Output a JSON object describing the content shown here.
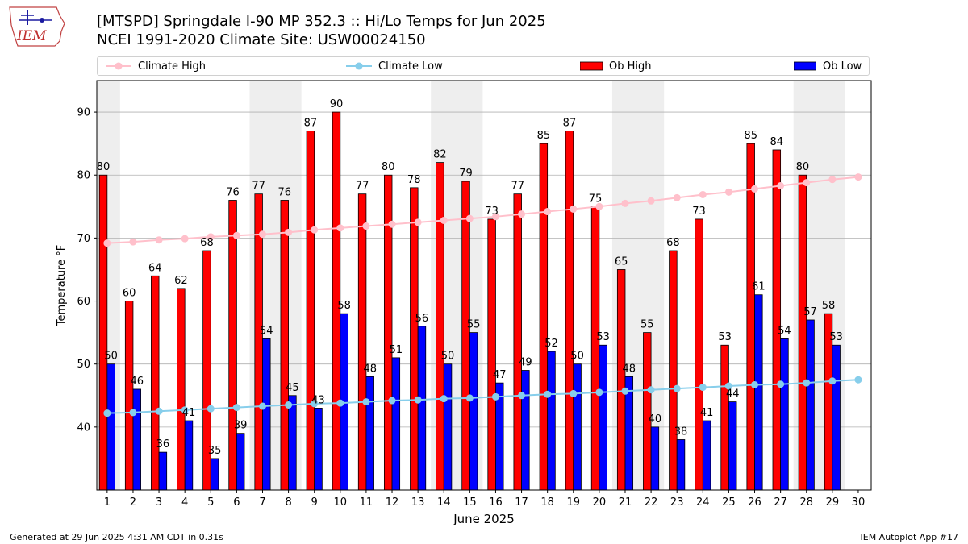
{
  "header": {
    "logo_text": "IEM",
    "title_line1": "[MTSPD] Springdale I-90 MP 352.3 :: Hi/Lo Temps for Jun 2025",
    "title_line2": "NCEI 1991-2020 Climate Site: USW00024150"
  },
  "footer": {
    "generated": "Generated at 29 Jun 2025 4:31 AM CDT in 0.31s",
    "app": "IEM Autoplot App #17"
  },
  "colors": {
    "ob_high": "#ff0000",
    "ob_low": "#0000ff",
    "climate_high": "#ffc0cb",
    "climate_low": "#87ceeb",
    "weekend_shade": "#eeeeee",
    "grid": "#b0b0b0"
  },
  "chart_data": {
    "type": "bar",
    "title": "[MTSPD] Springdale I-90 MP 352.3 :: Hi/Lo Temps for Jun 2025",
    "xlabel": "June 2025",
    "ylabel": "Temperature °F",
    "ylim": [
      30,
      95
    ],
    "yticks": [
      40,
      50,
      60,
      70,
      80,
      90
    ],
    "grid": "horizontal",
    "legend_position": "top",
    "categories": [
      "1",
      "2",
      "3",
      "4",
      "5",
      "6",
      "7",
      "8",
      "9",
      "10",
      "11",
      "12",
      "13",
      "14",
      "15",
      "16",
      "17",
      "18",
      "19",
      "20",
      "21",
      "22",
      "23",
      "24",
      "25",
      "26",
      "27",
      "28",
      "29",
      "30"
    ],
    "weekends": [
      [
        1,
        1
      ],
      [
        7,
        8
      ],
      [
        14,
        15
      ],
      [
        21,
        22
      ],
      [
        28,
        29
      ]
    ],
    "series": [
      {
        "name": "Climate High",
        "type": "line",
        "values": [
          69.2,
          69.4,
          69.7,
          69.9,
          70.2,
          70.4,
          70.6,
          70.9,
          71.3,
          71.6,
          71.9,
          72.2,
          72.5,
          72.8,
          73.1,
          73.4,
          73.8,
          74.2,
          74.6,
          75.0,
          75.5,
          75.9,
          76.4,
          76.9,
          77.3,
          77.8,
          78.3,
          78.8,
          79.3,
          79.7
        ]
      },
      {
        "name": "Climate Low",
        "type": "line",
        "values": [
          42.2,
          42.3,
          42.5,
          42.7,
          42.9,
          43.1,
          43.3,
          43.5,
          43.7,
          43.8,
          44.0,
          44.2,
          44.3,
          44.5,
          44.6,
          44.8,
          45.0,
          45.2,
          45.3,
          45.5,
          45.7,
          45.9,
          46.1,
          46.3,
          46.5,
          46.7,
          46.8,
          47.0,
          47.3,
          47.5
        ]
      },
      {
        "name": "Ob High",
        "type": "bar",
        "values": [
          80,
          60,
          64,
          62,
          68,
          76,
          77,
          76,
          87,
          90,
          77,
          80,
          78,
          82,
          79,
          73,
          77,
          85,
          87,
          75,
          65,
          55,
          68,
          73,
          53,
          85,
          84,
          80,
          58,
          null
        ]
      },
      {
        "name": "Ob Low",
        "type": "bar",
        "values": [
          50,
          46,
          36,
          41,
          35,
          39,
          54,
          45,
          43,
          58,
          48,
          51,
          56,
          50,
          55,
          47,
          49,
          52,
          50,
          53,
          48,
          40,
          38,
          41,
          44,
          61,
          54,
          57,
          53,
          null
        ]
      }
    ]
  }
}
